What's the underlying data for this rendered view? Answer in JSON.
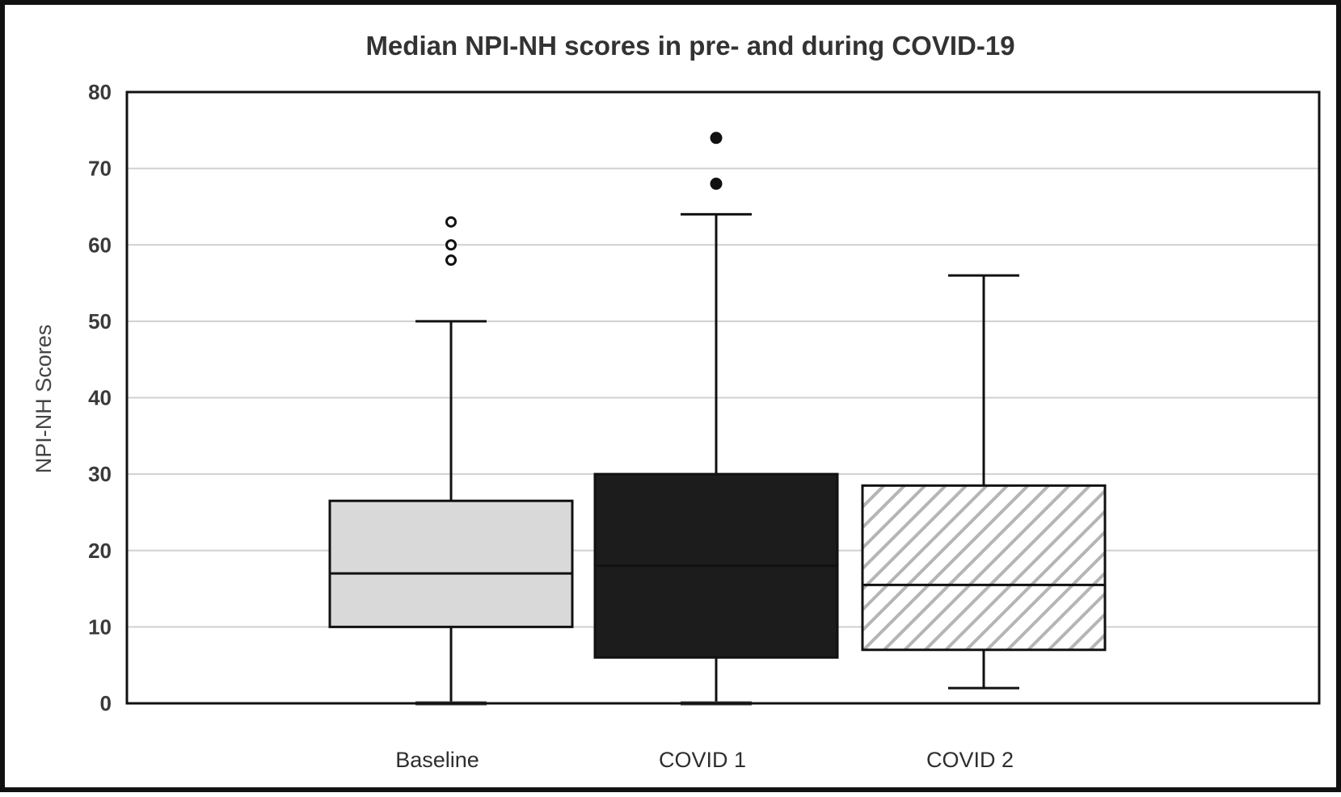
{
  "chart_data": {
    "type": "box",
    "title": "Median NPI-NH scores in pre- and during COVID-19",
    "xlabel": "",
    "ylabel": "NPI-NH Scores",
    "ylim": [
      0,
      80
    ],
    "yticks": [
      "0",
      "10",
      "20",
      "30",
      "40",
      "50",
      "60",
      "70",
      "80"
    ],
    "grid": true,
    "categories": [
      "Baseline",
      "COVID 1",
      "COVID 2"
    ],
    "boxes": [
      {
        "category": "Baseline",
        "min": 0,
        "q1": 10,
        "median": 17,
        "q3": 26.5,
        "max": 50,
        "outliers": [
          58,
          60,
          63
        ],
        "fill": "#d9d9d9",
        "outlier_style": "open"
      },
      {
        "category": "COVID 1",
        "min": 0,
        "q1": 6,
        "median": 18,
        "q3": 30,
        "max": 64,
        "outliers": [
          68,
          74
        ],
        "fill": "#1c1c1c",
        "outlier_style": "filled"
      },
      {
        "category": "COVID 2",
        "min": 2,
        "q1": 7,
        "median": 15.5,
        "q3": 28.5,
        "max": 56,
        "outliers": [],
        "fill": "hatched",
        "outlier_style": "none"
      }
    ],
    "colors": {
      "axis": "#111111",
      "grid": "#d0d0d0",
      "hatch": "#b5b5b5"
    }
  }
}
